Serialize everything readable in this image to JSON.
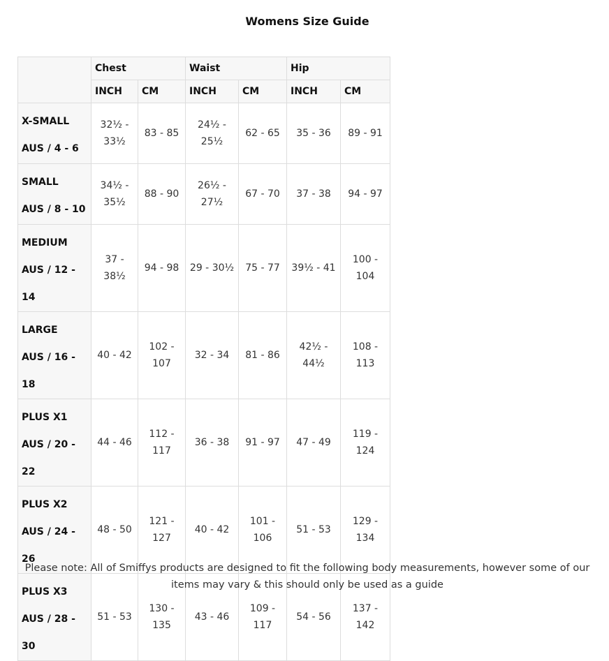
{
  "title": "Womens Size Guide",
  "groups": [
    "Chest",
    "Waist",
    "Hip"
  ],
  "units": [
    "INCH",
    "CM",
    "INCH",
    "CM",
    "INCH",
    "CM"
  ],
  "rows": [
    {
      "size": "X-SMALL",
      "aus": "AUS / 4 - 6",
      "values": [
        "32½ - 33½",
        "83 - 85",
        "24½ - 25½",
        "62 - 65",
        "35 - 36",
        "89 - 91"
      ]
    },
    {
      "size": "SMALL",
      "aus": "AUS / 8 - 10",
      "values": [
        "34½ - 35½",
        "88 - 90",
        "26½ - 27½",
        "67 - 70",
        "37 - 38",
        "94 - 97"
      ]
    },
    {
      "size": "MEDIUM",
      "aus": "AUS / 12 - 14",
      "values": [
        "37 - 38½",
        "94 - 98",
        "29 - 30½",
        "75 - 77",
        "39½ - 41",
        "100 - 104"
      ]
    },
    {
      "size": "LARGE",
      "aus": "AUS / 16 - 18",
      "values": [
        "40 - 42",
        "102 - 107",
        "32 - 34",
        "81 - 86",
        "42½ - 44½",
        "108 - 113"
      ]
    },
    {
      "size": "PLUS X1",
      "aus": "AUS / 20 - 22",
      "values": [
        "44 - 46",
        "112 - 117",
        "36 - 38",
        "91 - 97",
        "47 - 49",
        "119 - 124"
      ]
    },
    {
      "size": "PLUS X2",
      "aus": "AUS / 24 - 26",
      "values": [
        "48 - 50",
        "121 - 127",
        "40 - 42",
        "101 - 106",
        "51 - 53",
        "129 - 134"
      ]
    },
    {
      "size": "PLUS X3",
      "aus": "AUS / 28 - 30",
      "values": [
        "51 - 53",
        "130 - 135",
        "43 - 46",
        "109 - 117",
        "54 - 56",
        "137 - 142"
      ]
    }
  ],
  "note": "Please note: All of Smiffys products are designed to fit the following body measurements, however some of our items may vary & this should only be used as a guide"
}
